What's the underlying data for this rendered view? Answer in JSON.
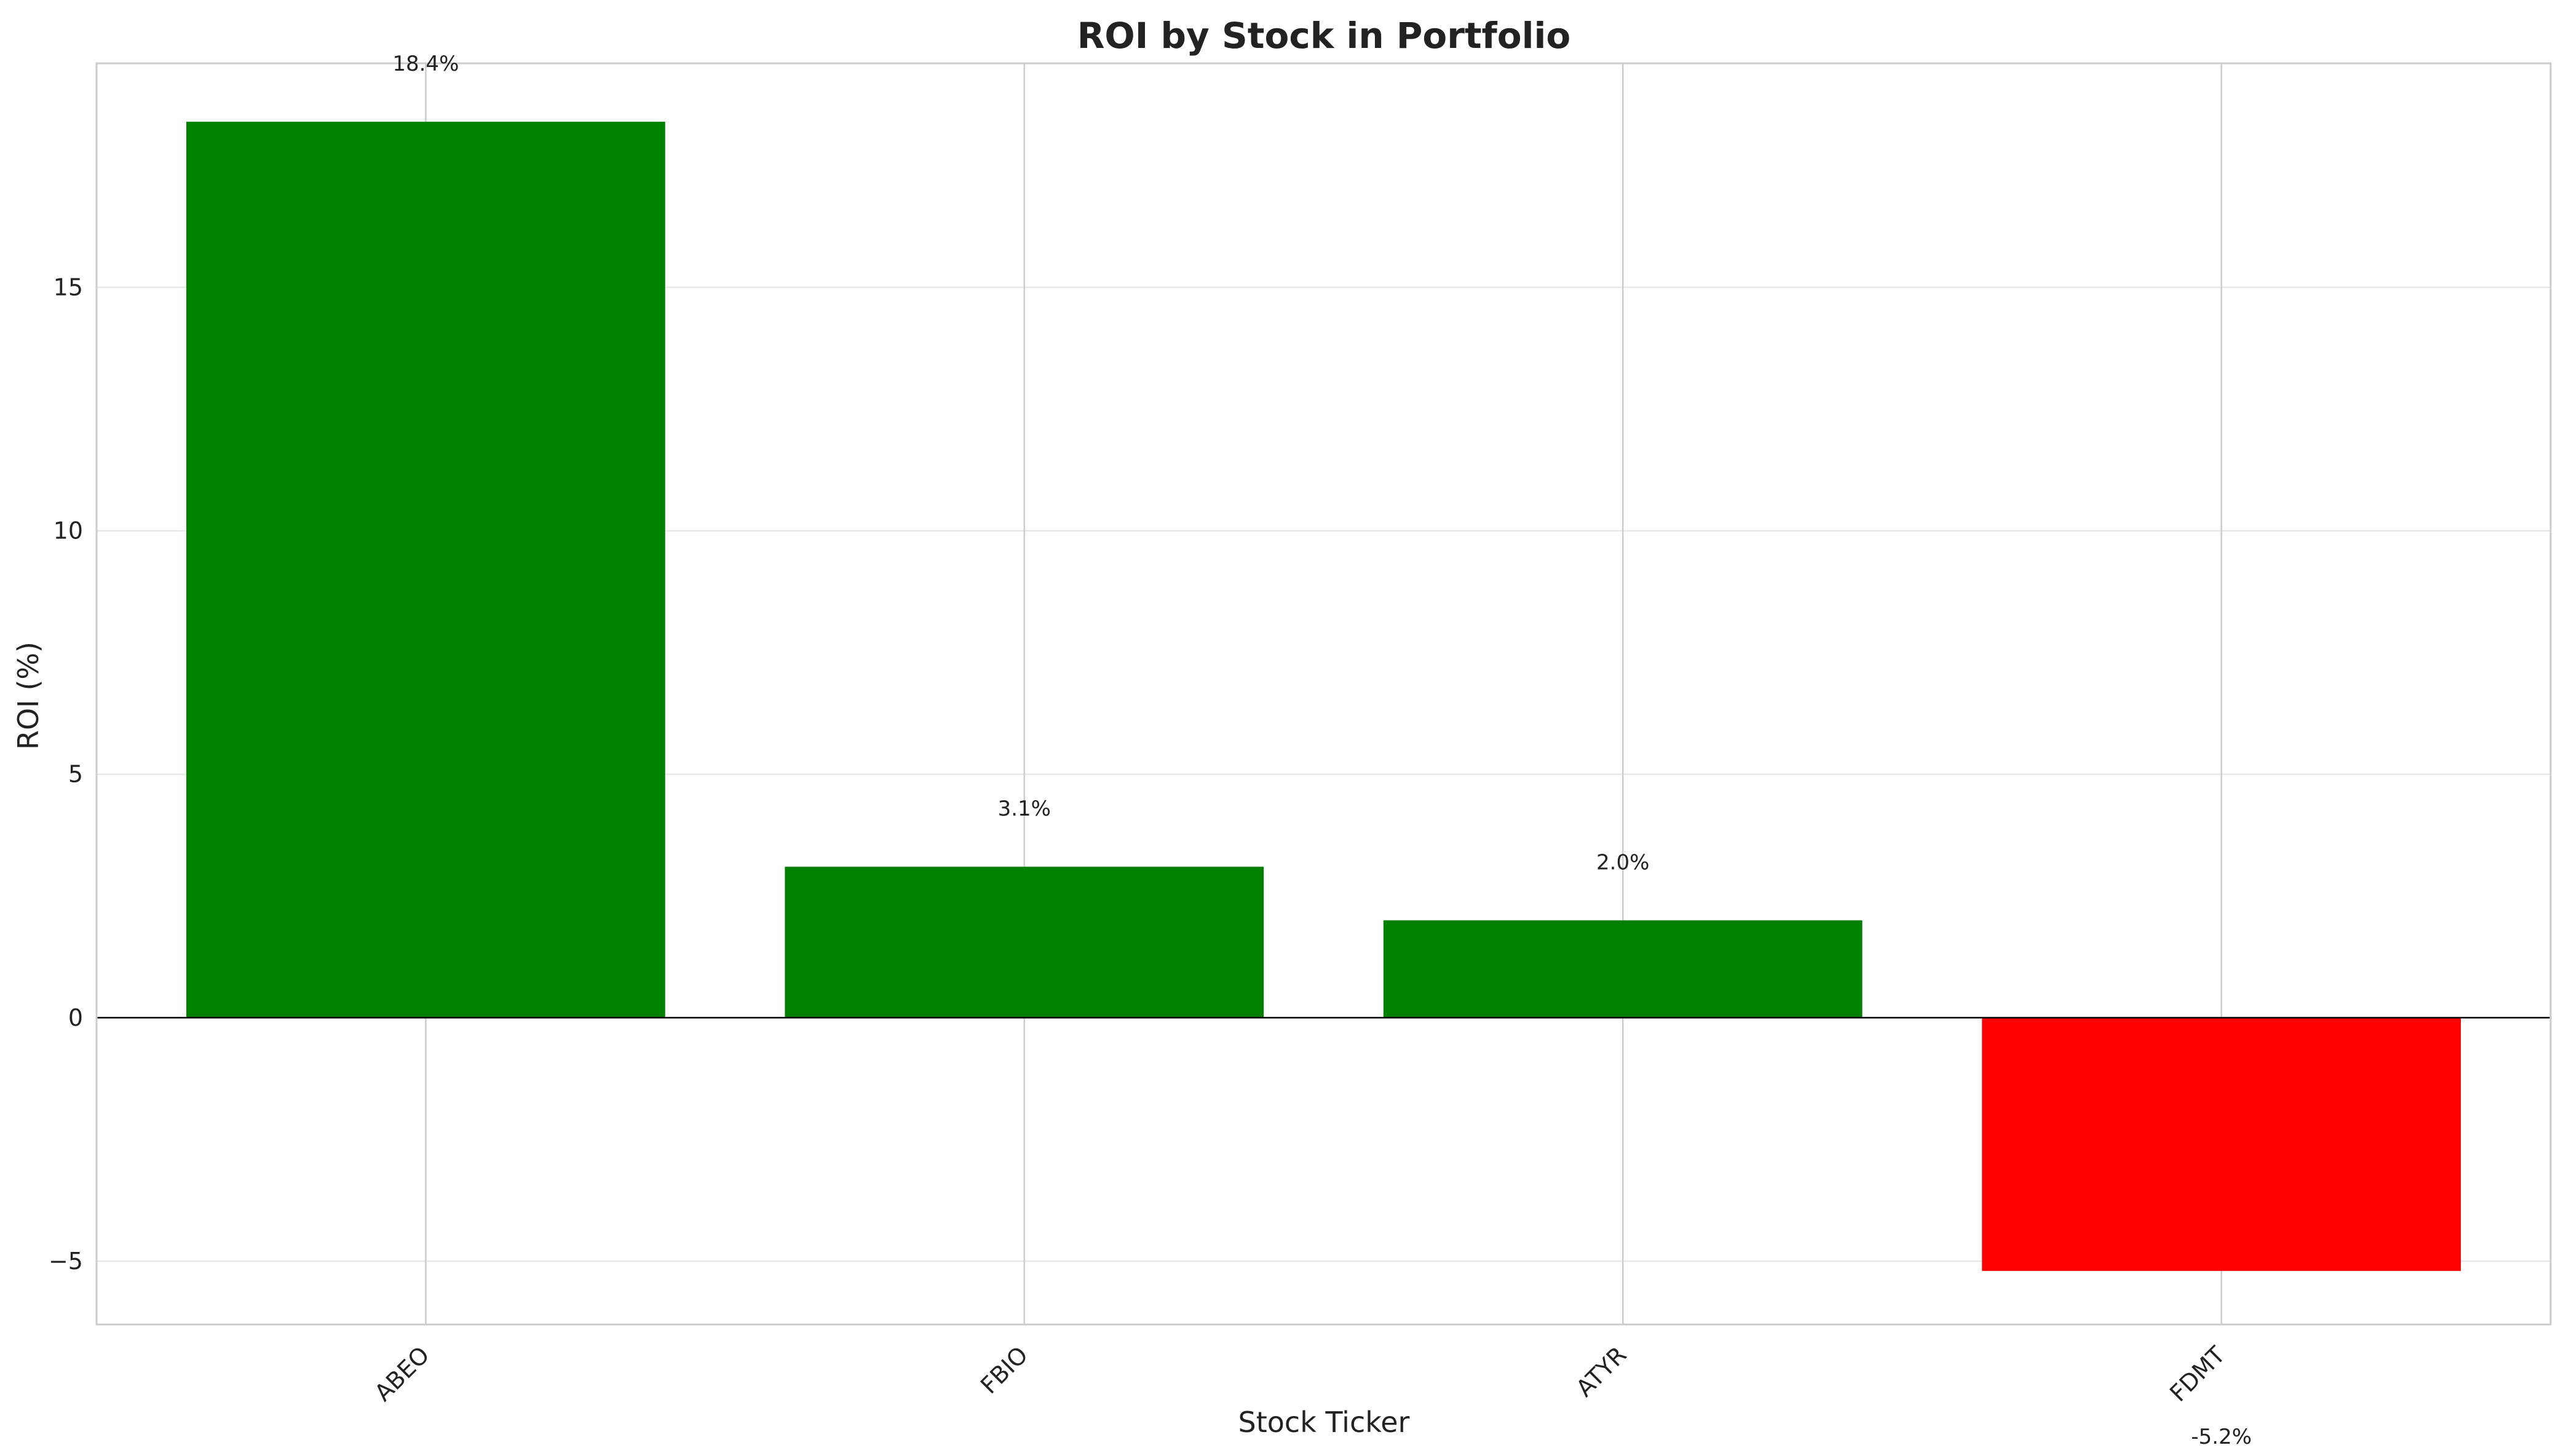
{
  "chart_data": {
    "type": "bar",
    "title": "ROI by Stock in Portfolio",
    "xlabel": "Stock Ticker",
    "ylabel": "ROI (%)",
    "categories": [
      "ABEO",
      "FBIO",
      "ATYR",
      "FDMT"
    ],
    "values": [
      18.4,
      3.1,
      2.0,
      -5.2
    ],
    "data_labels": [
      "18.4%",
      "3.1%",
      "2.0%",
      "-5.2%"
    ],
    "bar_colors": [
      "#008000",
      "#008000",
      "#008000",
      "#ff0000"
    ],
    "ylim": [
      -6.3,
      19.6
    ],
    "yticks": [
      -5,
      0,
      5,
      10,
      15
    ],
    "ytick_labels": [
      "−5",
      "0",
      "5",
      "10",
      "15"
    ],
    "grid": true,
    "zero_line": true,
    "legend": "none"
  }
}
